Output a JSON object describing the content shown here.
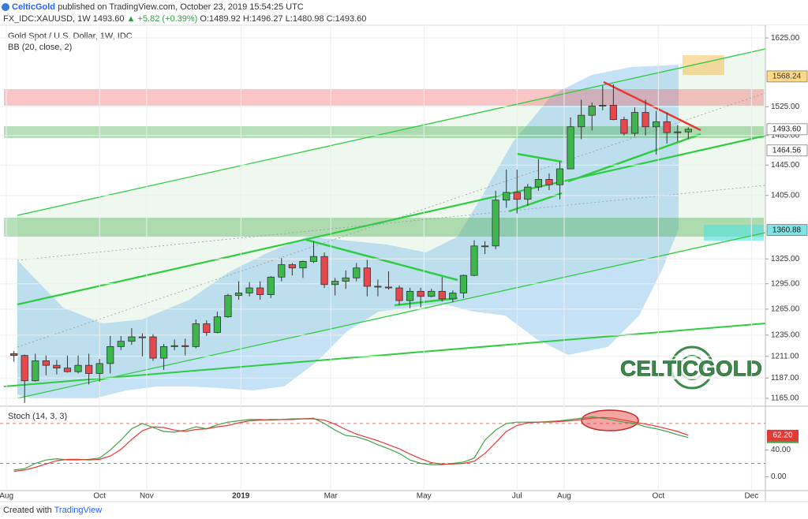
{
  "header": {
    "author": "CelticGold",
    "published": "published on TradingView.com, October 23, 2019 15:54:25 UTC",
    "symbol": "FX_IDC:XAUUSD, 1W",
    "last": "1493.60",
    "change": "▲ +5.82 (+0.39%)",
    "open": "O:1489.92",
    "high": "H:1496.27",
    "low": "L:1480.98",
    "close": "C:1493.60"
  },
  "footer": {
    "created": "Created with",
    "brand": "TradingView"
  },
  "watermark": "CELTICGOLD",
  "chart_data": [
    {
      "type": "candlestick",
      "title": "Gold Spot / U.S. Dollar, 1W, IDC",
      "indicator": "BB (20, close, 2)",
      "up_color": "#3db64e",
      "down_color": "#e5484d",
      "log": true,
      "grid": true,
      "open": [
        1214,
        1212,
        1184,
        1206,
        1201,
        1198,
        1194,
        1201,
        1192,
        1203,
        1222,
        1228,
        1232,
        1233,
        1209,
        1222,
        1223,
        1222,
        1248,
        1238,
        1256,
        1281,
        1284,
        1290,
        1282,
        1303,
        1318,
        1314,
        1322,
        1328,
        1294,
        1298,
        1302,
        1314,
        1292,
        1291,
        1290,
        1275,
        1286,
        1280,
        1286,
        1277,
        1284,
        1305,
        1341,
        1341,
        1399,
        1409,
        1400,
        1416,
        1426,
        1419,
        1440,
        1497,
        1513,
        1526,
        1527,
        1507,
        1488,
        1517,
        1497,
        1504,
        1489,
        1489.92
      ],
      "high": [
        1217,
        1213,
        1214,
        1212,
        1207,
        1212,
        1212,
        1214,
        1208,
        1234,
        1234,
        1243,
        1237,
        1236,
        1225,
        1230,
        1231,
        1253,
        1252,
        1262,
        1283,
        1298,
        1297,
        1298,
        1304,
        1326,
        1320,
        1323,
        1347,
        1333,
        1302,
        1311,
        1320,
        1324,
        1300,
        1310,
        1293,
        1290,
        1290,
        1289,
        1303,
        1287,
        1306,
        1348,
        1347,
        1411,
        1439,
        1439,
        1420,
        1453,
        1434,
        1449,
        1510,
        1535,
        1531,
        1555,
        1557,
        1511,
        1524,
        1535,
        1519,
        1517,
        1499,
        1496.27
      ],
      "low": [
        1205,
        1160,
        1183,
        1190,
        1191,
        1193,
        1192,
        1180,
        1183,
        1192,
        1218,
        1224,
        1211,
        1206,
        1196,
        1218,
        1212,
        1220,
        1234,
        1237,
        1255,
        1276,
        1280,
        1276,
        1278,
        1298,
        1305,
        1302,
        1320,
        1290,
        1281,
        1289,
        1298,
        1280,
        1280,
        1288,
        1270,
        1266,
        1267,
        1279,
        1274,
        1273,
        1278,
        1304,
        1331,
        1337,
        1389,
        1382,
        1392,
        1411,
        1412,
        1400,
        1440,
        1480,
        1492,
        1520,
        1506,
        1485,
        1484,
        1485,
        1459,
        1474,
        1477,
        1480.98
      ],
      "close": [
        1212,
        1184,
        1206,
        1201,
        1198,
        1194,
        1201,
        1192,
        1203,
        1222,
        1228,
        1233,
        1233,
        1209,
        1222,
        1223,
        1222,
        1248,
        1238,
        1256,
        1281,
        1284,
        1290,
        1282,
        1303,
        1318,
        1314,
        1322,
        1328,
        1294,
        1298,
        1302,
        1314,
        1292,
        1291,
        1290,
        1275,
        1286,
        1280,
        1286,
        1277,
        1284,
        1305,
        1341,
        1341,
        1399,
        1409,
        1400,
        1416,
        1426,
        1419,
        1440,
        1497,
        1513,
        1526,
        1527,
        1507,
        1488,
        1517,
        1497,
        1504,
        1489,
        1490,
        1493.6
      ],
      "xlim": [
        -1.3,
        70.2
      ],
      "xticks": [
        {
          "value": -0.7,
          "label": "Aug"
        },
        {
          "value": 8.0,
          "label": "Oct"
        },
        {
          "value": 12.4,
          "label": "Nov"
        },
        {
          "value": 21.2,
          "label": "2019"
        },
        {
          "value": 29.6,
          "label": "Mar"
        },
        {
          "value": 38.3,
          "label": "May"
        },
        {
          "value": 47.0,
          "label": "Jul"
        },
        {
          "value": 51.4,
          "label": "Aug"
        },
        {
          "value": 60.2,
          "label": "Oct"
        },
        {
          "value": 68.9,
          "label": "Dec"
        }
      ],
      "ylim": [
        1156.5,
        1643
      ],
      "yticks": [
        {
          "value": 1165,
          "label": "1165.00"
        },
        {
          "value": 1187,
          "label": "1187.00"
        },
        {
          "value": 1211,
          "label": "1211.00"
        },
        {
          "value": 1235,
          "label": "1235.00"
        },
        {
          "value": 1265,
          "label": "1265.00"
        },
        {
          "value": 1295,
          "label": "1295.00"
        },
        {
          "value": 1325,
          "label": "1325.00"
        },
        {
          "value": 1405,
          "label": "1405.00"
        },
        {
          "value": 1445,
          "label": "1445.00"
        },
        {
          "value": 1485,
          "label": "1485.00"
        },
        {
          "value": 1525,
          "label": "1525.00"
        },
        {
          "value": 1625,
          "label": "1625.00"
        }
      ],
      "price_labels": [
        {
          "value": 1568.24,
          "bg": "#ffd98a",
          "fg": "#333333"
        },
        {
          "value": 1493.6,
          "label": "1493.60",
          "bg": "#ffffff",
          "fg": "#222222"
        },
        {
          "value": 1464.56,
          "bg": "#ffffff",
          "fg": "#222222"
        },
        {
          "value": 1360.88,
          "bg": "#7fe3e3",
          "fg": "#222222"
        }
      ]
    },
    {
      "type": "line",
      "title": "Stoch (14, 3, 3)",
      "series": [
        {
          "color": "#43a047",
          "values": [
            10,
            12,
            20,
            25,
            27,
            25,
            25,
            26,
            28,
            40,
            55,
            72,
            80,
            74,
            68,
            67,
            70,
            75,
            72,
            78,
            82,
            84,
            86,
            86,
            85,
            86,
            87,
            87,
            88,
            80,
            70,
            62,
            60,
            55,
            48,
            42,
            35,
            25,
            20,
            18,
            18,
            20,
            22,
            28,
            55,
            70,
            80,
            82,
            82,
            82,
            83,
            84,
            86,
            88,
            90,
            88,
            85,
            82,
            80,
            75,
            72,
            68,
            63,
            58.91
          ]
        },
        {
          "color": "#e53935",
          "values": [
            8,
            10,
            14,
            19,
            24,
            26,
            26,
            25,
            26,
            31,
            41,
            56,
            69,
            75,
            74,
            70,
            68,
            71,
            72,
            75,
            77,
            81,
            84,
            85,
            86,
            86,
            86,
            87,
            87,
            85,
            79,
            71,
            64,
            59,
            54,
            48,
            42,
            34,
            27,
            21,
            19,
            19,
            20,
            23,
            35,
            51,
            68,
            77,
            81,
            82,
            82,
            83,
            84,
            86,
            88,
            89,
            88,
            85,
            82,
            79,
            76,
            72,
            68,
            62.2
          ],
          "last_label": "62.20"
        }
      ],
      "ylim": [
        -21,
        106
      ],
      "yticks": [
        {
          "value": 0,
          "label": "0.00"
        },
        {
          "value": 40,
          "label": "40.00"
        }
      ],
      "levels": [
        80,
        20
      ],
      "level_colors": [
        "#e57373",
        "#888888"
      ]
    }
  ]
}
